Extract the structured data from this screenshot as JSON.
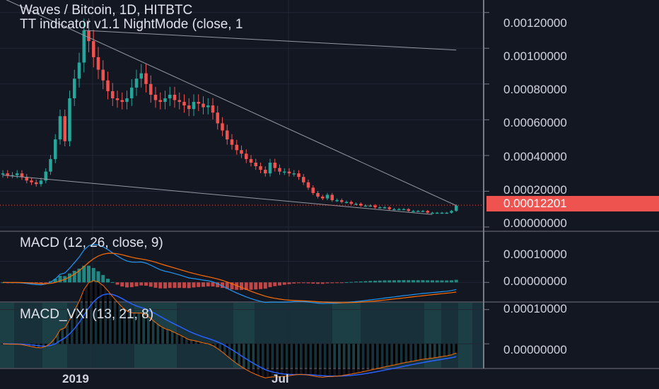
{
  "chart_data": [
    {
      "type": "candlestick",
      "title": "Waves / Bitcoin, 1D, HITBTC",
      "subtitle": "TT indicator v1.1 NightMode (close, 1",
      "y_ticks": [
        "0.00120000",
        "0.00100000",
        "0.00080000",
        "0.00060000",
        "0.00040000",
        "0.00020000",
        "0.00000000"
      ],
      "y_tick_values": [
        0.0012,
        0.001,
        0.0008,
        0.0006,
        0.0004,
        0.0002,
        0.0
      ],
      "ylim": [
        -2e-05,
        0.00127
      ],
      "last_price": "0.00012201",
      "last_price_value": 0.00012201,
      "x_ticks": [
        "2019",
        "Jul"
      ],
      "close_series": [
        0.0003,
        0.00029,
        0.00029,
        0.0003,
        0.00028,
        0.00026,
        0.00025,
        0.00024,
        0.00026,
        0.00031,
        0.00038,
        0.00049,
        0.00062,
        0.00048,
        0.00072,
        0.00083,
        0.00092,
        0.0011,
        0.00104,
        0.00095,
        0.00088,
        0.00082,
        0.00076,
        0.00072,
        0.00071,
        0.0007,
        0.00072,
        0.00078,
        0.00083,
        0.00086,
        0.0008,
        0.00074,
        0.00071,
        0.0007,
        0.00072,
        0.00074,
        0.00071,
        0.0007,
        0.00068,
        0.00066,
        0.0007,
        0.00069,
        0.00067,
        0.00068,
        0.00064,
        0.00058,
        0.00054,
        0.00049,
        0.00046,
        0.00043,
        0.00041,
        0.00038,
        0.00036,
        0.00034,
        0.00032,
        0.0003,
        0.00036,
        0.00033,
        0.00031,
        0.00031,
        0.0003,
        0.0003,
        0.00028,
        0.00025,
        0.00022,
        0.00019,
        0.00017,
        0.00016,
        0.00018,
        0.00015,
        0.00015,
        0.00014,
        0.00014,
        0.00013,
        0.00013,
        0.00012,
        0.00012,
        0.00012,
        0.00011,
        0.00011,
        0.00011,
        0.0001,
        0.0001,
        0.0001,
        0.0001,
        9e-05,
        9e-05,
        9e-05,
        9e-05,
        8e-05,
        8e-05,
        8e-05,
        8e-05,
        8e-05,
        9e-05,
        0.00012
      ],
      "trendlines": [
        {
          "from": [
            0,
            0.00128
          ],
          "to": [
            95,
            0.00012
          ]
        },
        {
          "from": [
            17,
            0.0011
          ],
          "to": [
            95,
            0.00099
          ]
        },
        {
          "from": [
            0,
            0.00029
          ],
          "to": [
            90,
            7e-05
          ]
        }
      ]
    },
    {
      "type": "line",
      "title": "MACD (12, 26, close, 9)",
      "y_ticks": [
        "0.00010000",
        "0.00000000"
      ],
      "y_tick_values": [
        0.0001,
        0.0
      ],
      "ylim": [
        -9e-05,
        0.00024
      ],
      "series": [
        {
          "name": "MACD",
          "color": "#2196f3"
        },
        {
          "name": "Signal",
          "color": "#ff6d00"
        }
      ]
    },
    {
      "type": "line",
      "title": "MACD_VXI (13, 21, 8)",
      "y_ticks": [
        "0.00010000",
        "0.00000000"
      ],
      "y_tick_values": [
        0.0001,
        0.0
      ],
      "ylim": [
        -7e-05,
        0.00012
      ]
    }
  ],
  "colors": {
    "background": "#131722",
    "grid": "#232735",
    "up": "#26a69a",
    "down": "#ef5350",
    "trendline": "#9598a1",
    "price_tag": "#ef5350"
  }
}
